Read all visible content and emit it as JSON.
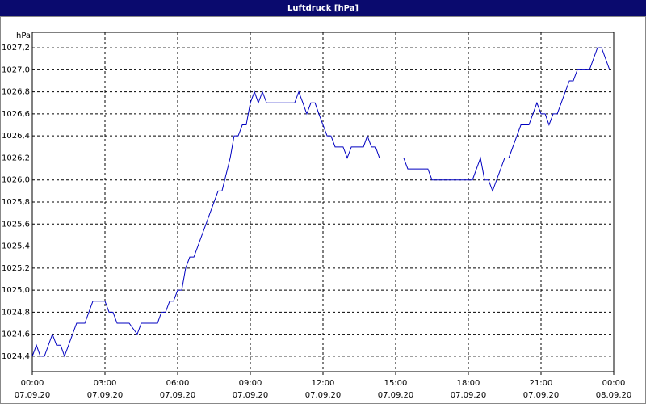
{
  "chart_data": {
    "type": "line",
    "title": "Luftdruck [hPa]",
    "y_unit": "hPa",
    "x": [
      0,
      0.17,
      0.33,
      0.5,
      0.83,
      1,
      1.17,
      1.33,
      1.83,
      2.17,
      2.5,
      3,
      3.17,
      3.33,
      3.5,
      4,
      4.33,
      4.5,
      5.17,
      5.33,
      5.5,
      5.67,
      5.83,
      6,
      6.17,
      6.33,
      6.5,
      6.67,
      7.67,
      7.83,
      8.17,
      8.33,
      8.5,
      8.67,
      8.83,
      9,
      9.17,
      9.33,
      9.5,
      9.67,
      10.83,
      11,
      11.17,
      11.33,
      11.5,
      11.67,
      11.83,
      12,
      12.17,
      12.33,
      12.5,
      12.83,
      13,
      13.17,
      13.67,
      13.83,
      14,
      14.17,
      14.33,
      15.33,
      15.5,
      16.33,
      16.5,
      18.17,
      18.5,
      18.67,
      18.83,
      19,
      19.5,
      19.67,
      20.17,
      20.5,
      20.83,
      21,
      21.17,
      21.33,
      21.5,
      21.67,
      22,
      22.17,
      22.33,
      22.5,
      23,
      23.33,
      23.5,
      23.83
    ],
    "series": [
      {
        "name": "Luftdruck",
        "color": "#0000c0",
        "values": [
          1024.4,
          1024.5,
          1024.4,
          1024.4,
          1024.6,
          1024.5,
          1024.5,
          1024.4,
          1024.7,
          1024.7,
          1024.9,
          1024.9,
          1024.8,
          1024.8,
          1024.7,
          1024.7,
          1024.6,
          1024.7,
          1024.7,
          1024.8,
          1024.8,
          1024.9,
          1024.9,
          1025.0,
          1025.0,
          1025.2,
          1025.3,
          1025.3,
          1025.9,
          1025.9,
          1026.2,
          1026.4,
          1026.4,
          1026.5,
          1026.5,
          1026.7,
          1026.8,
          1026.7,
          1026.8,
          1026.7,
          1026.7,
          1026.8,
          1026.7,
          1026.6,
          1026.7,
          1026.7,
          1026.6,
          1026.5,
          1026.4,
          1026.4,
          1026.3,
          1026.3,
          1026.2,
          1026.3,
          1026.3,
          1026.4,
          1026.3,
          1026.3,
          1026.2,
          1026.2,
          1026.1,
          1026.1,
          1026.0,
          1026.0,
          1026.2,
          1026.0,
          1026.0,
          1025.9,
          1026.2,
          1026.2,
          1026.5,
          1026.5,
          1026.7,
          1026.6,
          1026.6,
          1026.5,
          1026.6,
          1026.6,
          1026.8,
          1026.9,
          1026.9,
          1027.0,
          1027.0,
          1027.2,
          1027.2,
          1027.0
        ]
      }
    ],
    "xlim": [
      0,
      24
    ],
    "xticks": [
      {
        "value": 0,
        "label": "00:00"
      },
      {
        "value": 3,
        "label": "03:00"
      },
      {
        "value": 6,
        "label": "06:00"
      },
      {
        "value": 9,
        "label": "09:00"
      },
      {
        "value": 12,
        "label": "12:00"
      },
      {
        "value": 15,
        "label": "15:00"
      },
      {
        "value": 18,
        "label": "18:00"
      },
      {
        "value": 21,
        "label": "21:00"
      },
      {
        "value": 24,
        "label": "00:00"
      }
    ],
    "xtick_dates": [
      "07.09.20",
      "07.09.20",
      "07.09.20",
      "07.09.20",
      "07.09.20",
      "07.09.20",
      "07.09.20",
      "07.09.20",
      "08.09.20"
    ],
    "ylim": [
      1024.26,
      1027.34
    ],
    "yticks": [
      {
        "value": 1024.4,
        "label": "1024,4"
      },
      {
        "value": 1024.6,
        "label": "1024,6"
      },
      {
        "value": 1024.8,
        "label": "1024,8"
      },
      {
        "value": 1025.0,
        "label": "1025,0"
      },
      {
        "value": 1025.2,
        "label": "1025,2"
      },
      {
        "value": 1025.4,
        "label": "1025,4"
      },
      {
        "value": 1025.6,
        "label": "1025,6"
      },
      {
        "value": 1025.8,
        "label": "1025,8"
      },
      {
        "value": 1026.0,
        "label": "1026,0"
      },
      {
        "value": 1026.2,
        "label": "1026,2"
      },
      {
        "value": 1026.4,
        "label": "1026,4"
      },
      {
        "value": 1026.6,
        "label": "1026,6"
      },
      {
        "value": 1026.8,
        "label": "1026,8"
      },
      {
        "value": 1027.0,
        "label": "1027,0"
      },
      {
        "value": 1027.2,
        "label": "1027,2"
      }
    ],
    "grid": true
  }
}
